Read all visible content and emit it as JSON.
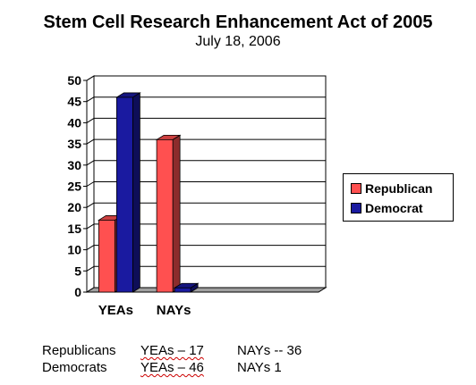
{
  "chart_data": {
    "type": "bar",
    "title": "Stem Cell Research Enhancement Act of 2005",
    "subtitle": "July 18, 2006",
    "categories": [
      "YEAs",
      "NAYs",
      "",
      ""
    ],
    "series": [
      {
        "name": "Republican",
        "values": [
          17,
          36,
          0,
          0
        ],
        "color": "#ff5050"
      },
      {
        "name": "Democrat",
        "values": [
          46,
          1,
          0,
          0
        ],
        "color": "#1a1aa0"
      }
    ],
    "ylim": [
      0,
      50
    ],
    "yticks": [
      0,
      5,
      10,
      15,
      20,
      25,
      30,
      35,
      40,
      45,
      50
    ],
    "grid": true,
    "three_d": true,
    "legend_position": "right"
  },
  "notes": [
    {
      "party": "Republicans",
      "yeas": "YEAs – 17",
      "nays": "NAYs -- 36"
    },
    {
      "party": "Democrats",
      "yeas": "YEAs – 46",
      "nays": "NAYs 1"
    }
  ]
}
